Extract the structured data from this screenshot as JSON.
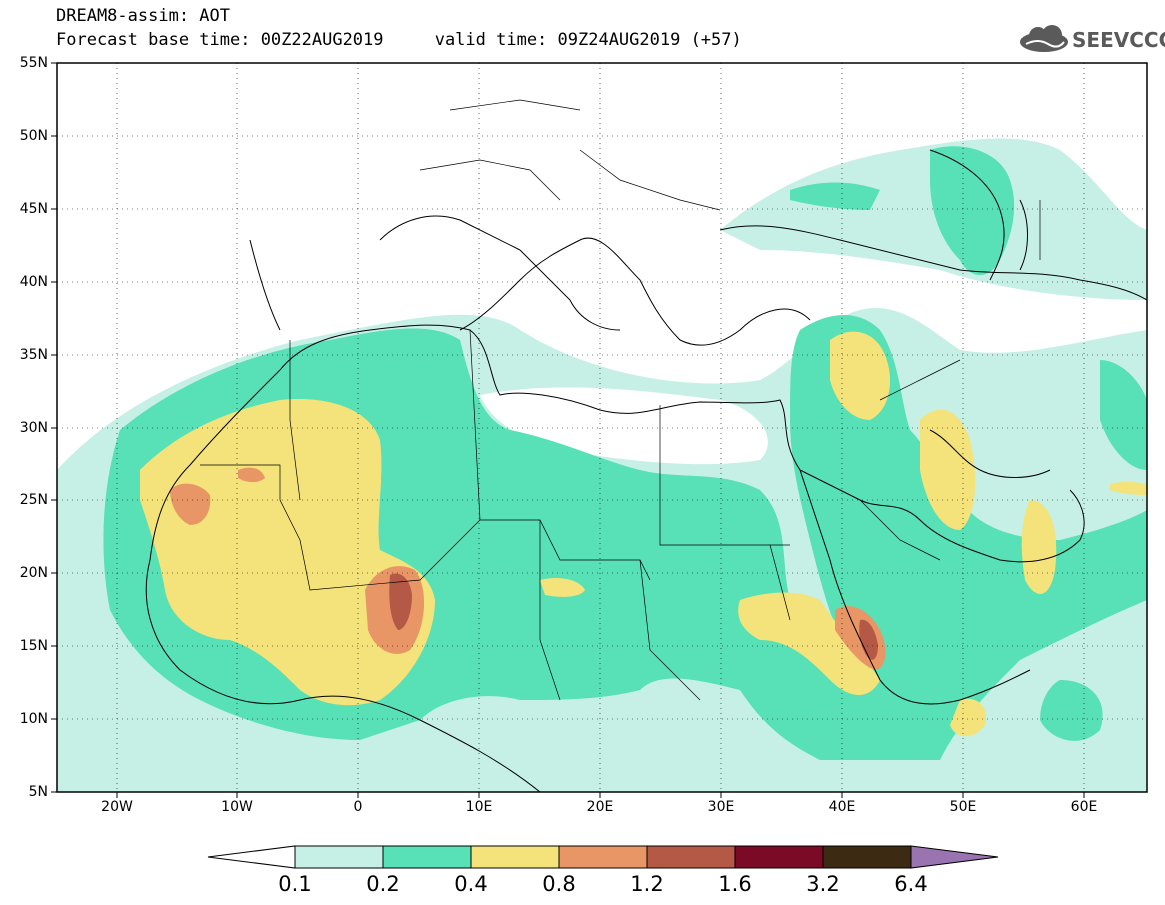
{
  "title": {
    "line1": "DREAM8-assim: AOT",
    "line2_base": "Forecast base time: 00Z22AUG2019",
    "line2_valid": "valid time: 09Z24AUG2019 (+57)"
  },
  "logo": {
    "text": "SEEVCCC",
    "icon": "cloud-icon"
  },
  "map": {
    "projection": "lat-lon",
    "lon_range": [
      -25,
      65
    ],
    "lat_range": [
      5,
      55
    ],
    "lat_labels": [
      "55N",
      "50N",
      "45N",
      "40N",
      "35N",
      "30N",
      "25N",
      "20N",
      "15N",
      "10N",
      "5N"
    ],
    "lon_labels": [
      "20W",
      "10W",
      "0",
      "10E",
      "20E",
      "30E",
      "40E",
      "50E",
      "60E"
    ],
    "grid": "dotted"
  },
  "colorbar": {
    "levels": [
      "0.1",
      "0.2",
      "0.4",
      "0.8",
      "1.2",
      "1.6",
      "3.2",
      "6.4"
    ],
    "colors": {
      "under": "#ffffff",
      "c1": "#c6f0e6",
      "c2": "#58e0b6",
      "c3": "#f4e37a",
      "c4": "#e99666",
      "c5": "#b35946",
      "c6": "#7a0a26",
      "c7": "#3c2a13",
      "over": "#9a73b1"
    }
  }
}
